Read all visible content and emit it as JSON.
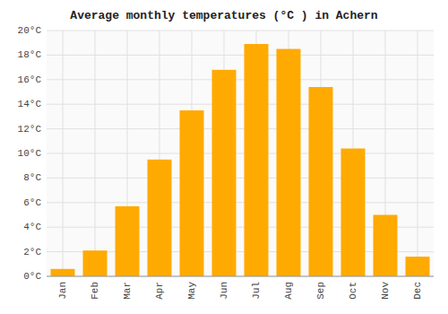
{
  "chart_data": {
    "type": "bar",
    "title": "Average monthly temperatures (°C ) in Achern",
    "categories": [
      "Jan",
      "Feb",
      "Mar",
      "Apr",
      "May",
      "Jun",
      "Jul",
      "Aug",
      "Sep",
      "Oct",
      "Nov",
      "Dec"
    ],
    "values": [
      0.6,
      2.1,
      5.7,
      9.5,
      13.5,
      16.8,
      18.9,
      18.5,
      15.4,
      10.4,
      5.0,
      1.6
    ],
    "color": "#FFAA00",
    "ylim": [
      0,
      20
    ],
    "yticks": [
      {
        "value": 0,
        "label": "0°C"
      },
      {
        "value": 2,
        "label": "2°C"
      },
      {
        "value": 4,
        "label": "4°C"
      },
      {
        "value": 6,
        "label": "6°C"
      },
      {
        "value": 8,
        "label": "8°C"
      },
      {
        "value": 10,
        "label": "10°C"
      },
      {
        "value": 12,
        "label": "12°C"
      },
      {
        "value": 14,
        "label": "14°C"
      },
      {
        "value": 16,
        "label": "16°C"
      },
      {
        "value": 18,
        "label": "18°C"
      },
      {
        "value": 20,
        "label": "20°C"
      }
    ],
    "grid": true
  }
}
